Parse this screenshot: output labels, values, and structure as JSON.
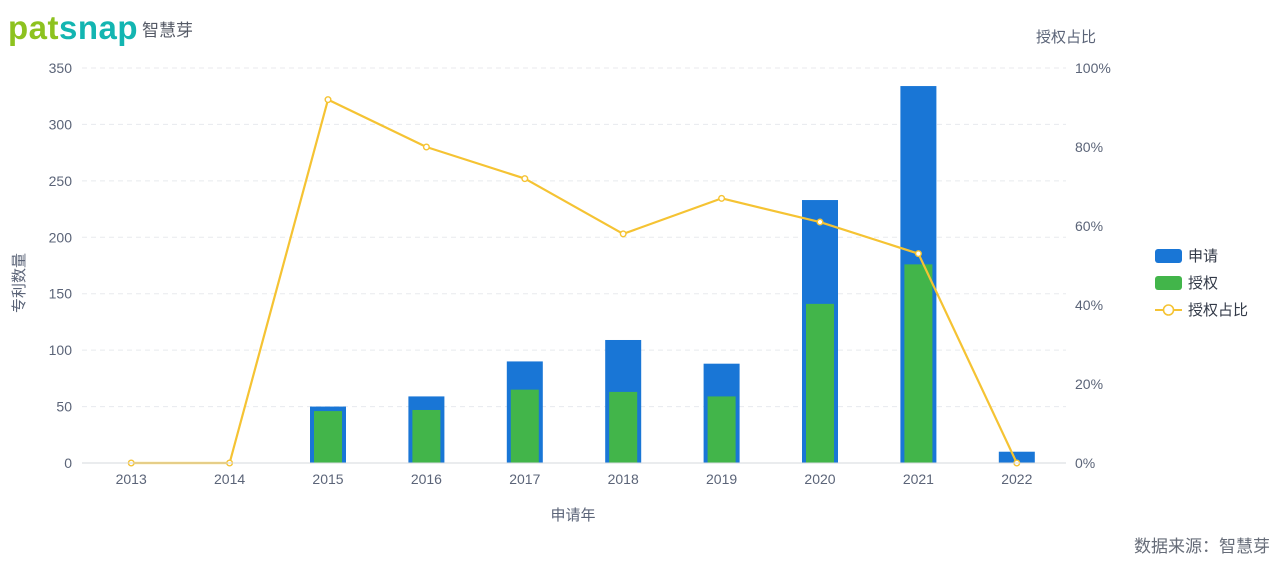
{
  "brand": {
    "word_a": "pat",
    "word_b": "snap",
    "sub": "智慧芽"
  },
  "source": "数据来源：智慧芽",
  "colors": {
    "applications": "#1976d6",
    "grants": "#42b54a",
    "ratio": "#f5c333",
    "grid": "#e8eaee"
  },
  "chart_data": {
    "type": "bar",
    "categories": [
      "2013",
      "2014",
      "2015",
      "2016",
      "2017",
      "2018",
      "2019",
      "2020",
      "2021",
      "2022"
    ],
    "series": [
      {
        "name": "申请",
        "type": "bar",
        "axis": "left",
        "values": [
          0,
          0,
          50,
          59,
          90,
          109,
          88,
          233,
          334,
          10
        ]
      },
      {
        "name": "授权",
        "type": "bar",
        "axis": "left",
        "values": [
          0,
          0,
          46,
          47,
          65,
          63,
          59,
          141,
          176,
          0
        ]
      },
      {
        "name": "授权占比",
        "type": "line",
        "axis": "right",
        "values": [
          0,
          0,
          92,
          80,
          72,
          58,
          67,
          61,
          53,
          0
        ]
      }
    ],
    "xlabel": "申请年",
    "ylabel": "专利数量",
    "y2label": "授权占比",
    "ylim": [
      0,
      350
    ],
    "yticks": [
      0,
      50,
      100,
      150,
      200,
      250,
      300,
      350
    ],
    "y2lim": [
      0,
      100
    ],
    "y2ticks": [
      "0%",
      "20%",
      "40%",
      "60%",
      "80%",
      "100%"
    ],
    "grid": true,
    "legend": "right"
  }
}
